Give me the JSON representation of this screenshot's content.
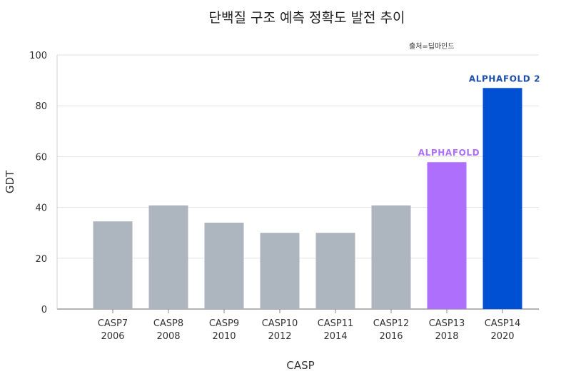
{
  "chart_data": {
    "type": "bar",
    "title": "단백질 구조 예측 정확도 발전 추이",
    "source": "출처=딥마인드",
    "xlabel": "CASP",
    "ylabel": "GDT",
    "ylim": [
      0,
      100
    ],
    "yticks": [
      0,
      20,
      40,
      60,
      80,
      100
    ],
    "grid": true,
    "categories": [
      [
        "CASP7",
        "2006"
      ],
      [
        "CASP8",
        "2008"
      ],
      [
        "CASP9",
        "2010"
      ],
      [
        "CASP10",
        "2012"
      ],
      [
        "CASP11",
        "2014"
      ],
      [
        "CASP12",
        "2016"
      ],
      [
        "CASP13",
        "2018"
      ],
      [
        "CASP14",
        "2020"
      ]
    ],
    "values": [
      34.5,
      40.8,
      34,
      30,
      30,
      40.8,
      57.8,
      87
    ],
    "bar_colors": [
      "#adb5bf",
      "#adb5bf",
      "#adb5bf",
      "#adb5bf",
      "#adb5bf",
      "#adb5bf",
      "#ad6ffc",
      "#0050d4"
    ],
    "annotations": [
      {
        "label": "ALPHAFOLD",
        "category_index": 6,
        "color": "#ad6ffc"
      },
      {
        "label": "ALPHAFOLD 2",
        "category_index": 7,
        "color": "#1f4fa8"
      }
    ]
  }
}
